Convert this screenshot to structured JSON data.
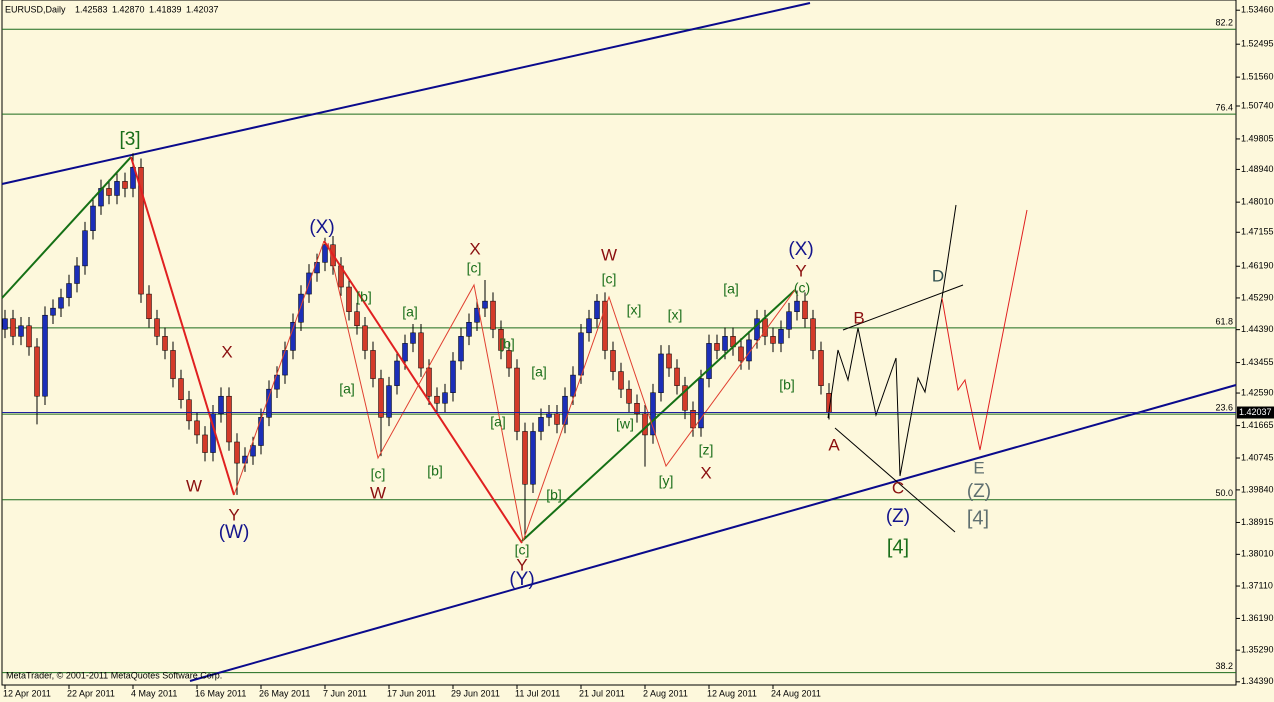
{
  "chart_data": {
    "type": "candlestick",
    "symbol": "EURUSD,Daily",
    "last_labels": {
      "open": "1.42583",
      "high": "1.42870",
      "low": "1.41839",
      "close": "1.42037"
    },
    "categories": [
      "12 Apr 2011",
      null,
      null,
      null,
      null,
      null,
      null,
      null,
      "22 Apr 2011",
      null,
      null,
      null,
      null,
      null,
      null,
      null,
      "4 May 2011",
      null,
      null,
      null,
      null,
      null,
      null,
      null,
      "16 May 2011",
      null,
      null,
      null,
      null,
      null,
      null,
      null,
      "26 May 2011",
      null,
      null,
      null,
      null,
      null,
      null,
      null,
      "7 Jun 2011",
      null,
      null,
      null,
      null,
      null,
      null,
      null,
      "17 Jun 2011",
      null,
      null,
      null,
      null,
      null,
      null,
      null,
      "29 Jun 2011",
      null,
      null,
      null,
      null,
      null,
      null,
      null,
      "11 Jul 2011",
      null,
      null,
      null,
      null,
      null,
      null,
      null,
      "21 Jul 2011",
      null,
      null,
      null,
      null,
      null,
      null,
      null,
      "2 Aug 2011",
      null,
      null,
      null,
      null,
      null,
      null,
      null,
      "12 Aug 2011",
      null,
      null,
      null,
      null,
      null,
      null,
      null,
      "24 Aug 2011",
      null,
      null,
      null,
      null,
      null,
      null,
      null
    ],
    "open": [
      1.444,
      1.447,
      1.442,
      1.445,
      1.439,
      1.425,
      1.448,
      1.45,
      1.453,
      1.457,
      1.462,
      1.472,
      1.479,
      1.484,
      1.482,
      1.486,
      1.484,
      1.49,
      1.454,
      1.447,
      1.442,
      1.438,
      1.43,
      1.424,
      1.418,
      1.414,
      1.409,
      1.42,
      1.425,
      1.412,
      1.406,
      1.408,
      1.411,
      1.419,
      1.427,
      1.431,
      1.438,
      1.446,
      1.454,
      1.46,
      1.463,
      1.468,
      1.462,
      1.456,
      1.449,
      1.445,
      1.438,
      1.43,
      1.419,
      1.428,
      1.435,
      1.44,
      1.443,
      1.433,
      1.425,
      1.423,
      1.426,
      1.435,
      1.442,
      1.446,
      1.45,
      1.452,
      1.444,
      1.438,
      1.433,
      1.415,
      1.4,
      1.415,
      1.419,
      1.42,
      1.417,
      1.425,
      1.431,
      1.443,
      1.447,
      1.452,
      1.438,
      1.432,
      1.427,
      1.423,
      1.42,
      1.414,
      1.426,
      1.437,
      1.433,
      1.428,
      1.421,
      1.416,
      1.43,
      1.44,
      1.438,
      1.442,
      1.439,
      1.435,
      1.441,
      1.447,
      1.442,
      1.44,
      1.444,
      1.449,
      1.452,
      1.447,
      1.438,
      1.42583
    ],
    "high": [
      1.4495,
      1.4495,
      1.4475,
      1.4475,
      1.4415,
      1.4505,
      1.4525,
      1.4555,
      1.4595,
      1.4645,
      1.4745,
      1.4815,
      1.4865,
      1.4865,
      1.4885,
      1.4885,
      1.494,
      1.4925,
      1.4565,
      1.4495,
      1.4445,
      1.4405,
      1.4325,
      1.4265,
      1.4205,
      1.4165,
      1.4225,
      1.4275,
      1.4275,
      1.4145,
      1.4105,
      1.4135,
      1.4215,
      1.4295,
      1.4335,
      1.4405,
      1.4485,
      1.4565,
      1.4625,
      1.4655,
      1.47,
      1.4705,
      1.4645,
      1.4585,
      1.4515,
      1.4475,
      1.4405,
      1.4325,
      1.4305,
      1.4375,
      1.4425,
      1.4455,
      1.4455,
      1.4355,
      1.4275,
      1.4285,
      1.4375,
      1.4445,
      1.4485,
      1.4525,
      1.458,
      1.4545,
      1.4465,
      1.4405,
      1.4355,
      1.4175,
      1.4175,
      1.4215,
      1.4225,
      1.4225,
      1.4275,
      1.4335,
      1.4455,
      1.4495,
      1.454,
      1.4545,
      1.4405,
      1.4345,
      1.4295,
      1.4255,
      1.4225,
      1.4285,
      1.4395,
      1.4395,
      1.4355,
      1.4305,
      1.4235,
      1.4325,
      1.4425,
      1.4425,
      1.4445,
      1.4445,
      1.4415,
      1.4435,
      1.4495,
      1.4495,
      1.4445,
      1.4465,
      1.4515,
      1.455,
      1.4545,
      1.4495,
      1.4405,
      1.4287
    ],
    "low": [
      1.4415,
      1.4395,
      1.4395,
      1.4365,
      1.417,
      1.4225,
      1.4455,
      1.4475,
      1.4505,
      1.4545,
      1.4595,
      1.4695,
      1.4765,
      1.4795,
      1.4795,
      1.4815,
      1.4815,
      1.4515,
      1.4445,
      1.4395,
      1.4355,
      1.4275,
      1.4215,
      1.4155,
      1.4115,
      1.4065,
      1.4065,
      1.4175,
      1.4095,
      1.397,
      1.4035,
      1.4055,
      1.4085,
      1.4165,
      1.4245,
      1.4285,
      1.4355,
      1.4435,
      1.4515,
      1.4575,
      1.4605,
      1.4595,
      1.4535,
      1.4465,
      1.4425,
      1.4355,
      1.4275,
      1.408,
      1.4165,
      1.4255,
      1.4325,
      1.4375,
      1.4305,
      1.4225,
      1.4205,
      1.4205,
      1.4235,
      1.4325,
      1.4395,
      1.4435,
      1.4475,
      1.4415,
      1.4355,
      1.4305,
      1.4125,
      1.385,
      1.3975,
      1.4125,
      1.4165,
      1.4145,
      1.4145,
      1.4225,
      1.4285,
      1.4405,
      1.4445,
      1.4355,
      1.4295,
      1.4245,
      1.4205,
      1.4175,
      1.405,
      1.4115,
      1.4235,
      1.4305,
      1.4255,
      1.4185,
      1.4135,
      1.4135,
      1.4275,
      1.4355,
      1.4355,
      1.4365,
      1.4325,
      1.4325,
      1.4385,
      1.4395,
      1.4375,
      1.4375,
      1.4415,
      1.4465,
      1.4445,
      1.4355,
      1.4255,
      1.41839
    ],
    "close": [
      1.447,
      1.442,
      1.445,
      1.439,
      1.425,
      1.448,
      1.45,
      1.453,
      1.457,
      1.462,
      1.472,
      1.479,
      1.484,
      1.482,
      1.486,
      1.484,
      1.49,
      1.454,
      1.447,
      1.442,
      1.438,
      1.43,
      1.424,
      1.418,
      1.414,
      1.409,
      1.42,
      1.425,
      1.412,
      1.406,
      1.408,
      1.411,
      1.419,
      1.427,
      1.431,
      1.438,
      1.446,
      1.454,
      1.46,
      1.463,
      1.468,
      1.462,
      1.456,
      1.449,
      1.445,
      1.438,
      1.43,
      1.419,
      1.428,
      1.435,
      1.44,
      1.443,
      1.433,
      1.425,
      1.423,
      1.426,
      1.435,
      1.442,
      1.446,
      1.45,
      1.452,
      1.444,
      1.438,
      1.433,
      1.415,
      1.4,
      1.415,
      1.419,
      1.42,
      1.417,
      1.425,
      1.431,
      1.443,
      1.447,
      1.452,
      1.438,
      1.432,
      1.427,
      1.423,
      1.42,
      1.414,
      1.426,
      1.437,
      1.433,
      1.428,
      1.421,
      1.416,
      1.43,
      1.44,
      1.438,
      1.442,
      1.439,
      1.435,
      1.441,
      1.447,
      1.442,
      1.44,
      1.444,
      1.449,
      1.452,
      1.447,
      1.438,
      1.428,
      1.42037
    ],
    "up_color": "#1c2fb8",
    "down_color": "#d33a2a",
    "wick_color": "#000000",
    "ylim": [
      1.343,
      1.5375
    ],
    "yticks": [
      {
        "value": 1.5346,
        "label": "1.53460"
      },
      1.52495,
      {
        "value": 1.5156,
        "label": "1.51560"
      },
      {
        "value": 1.5074,
        "label": "1.50740"
      },
      {
        "value": 1.49805,
        "label": "1.49805"
      },
      {
        "value": 1.4894,
        "label": "1.48940"
      },
      {
        "value": 1.4801,
        "label": "1.48010"
      },
      1.47155,
      {
        "value": 1.4619,
        "label": "1.46190"
      },
      {
        "value": 1.4529,
        "label": "1.45290"
      },
      {
        "value": 1.4439,
        "label": "1.44390"
      },
      1.43455,
      {
        "value": 1.4259,
        "label": "1.42590"
      },
      1.41665,
      1.40745,
      {
        "value": 1.3984,
        "label": "1.39840"
      },
      1.38915,
      {
        "value": 1.3801,
        "label": "1.38010"
      },
      {
        "value": 1.3711,
        "label": "1.37110"
      },
      {
        "value": 1.3619,
        "label": "1.36190"
      },
      {
        "value": 1.3529,
        "label": "1.35290"
      },
      {
        "value": 1.3439,
        "label": "1.34390"
      }
    ],
    "fib_levels": [
      {
        "name": "82.2",
        "value": 1.5292
      },
      {
        "name": "76.4",
        "value": 1.5051
      },
      {
        "name": "61.8",
        "value": 1.4444
      },
      {
        "name": "50.0",
        "value": 1.3956
      },
      {
        "name": "38.2",
        "value": 1.3465
      },
      {
        "name": "23.6",
        "value": 1.4199
      }
    ],
    "fib_color": "#1d6b1d",
    "annotations": [
      "[3]",
      "(X)",
      "X",
      "W",
      "Y",
      "(W)",
      "[a]",
      "[b]",
      "[a]",
      "[c]",
      "W",
      "[b]",
      "X",
      "[c]",
      "[b]",
      "[a]",
      "[a]",
      "[b]",
      "[c]",
      "Y",
      "(Y)",
      "W",
      "[c]",
      "[x]",
      "[w]",
      "[x]",
      "[a]",
      "[y]",
      "[z]",
      "X",
      "(X)",
      "Y",
      "(c)",
      "[b]",
      "B",
      "A",
      "D",
      "C",
      "E",
      "(Z)",
      "(Z)",
      "[4]",
      "[4]"
    ],
    "copyright": "MetaTrader, © 2001-2011 MetaQuotes Software Corp."
  }
}
